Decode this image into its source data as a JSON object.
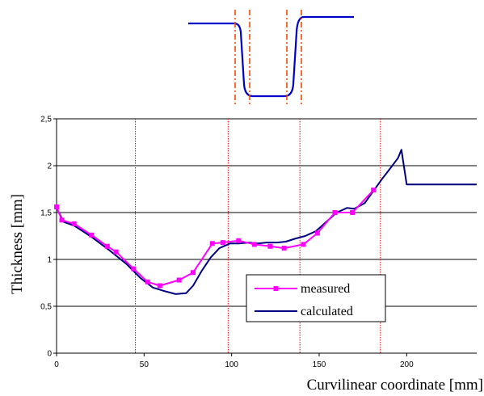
{
  "chart_data": {
    "type": "line",
    "title": "",
    "xlabel": "Curvilinear coordinate [mm]",
    "ylabel": "Thickness [mm]",
    "xlim": [
      0,
      240
    ],
    "ylim": [
      0,
      2.5
    ],
    "x_ticks": [
      "0",
      "50",
      "100",
      "150",
      "200"
    ],
    "y_ticks": [
      "0",
      "0,5",
      "1",
      "1,5",
      "2",
      "2,5"
    ],
    "grid": "horizontal",
    "legend_position": "bottom-center",
    "reference_lines_x": [
      45,
      98,
      139,
      185
    ],
    "series": [
      {
        "name": "measured",
        "color": "#ff00ff",
        "marker": "square",
        "x": [
          0,
          3,
          10,
          20,
          29,
          34,
          44,
          52,
          59,
          70,
          78,
          89,
          95,
          104,
          113,
          122,
          130,
          141,
          149,
          159,
          169,
          181
        ],
        "y": [
          1.56,
          1.42,
          1.38,
          1.26,
          1.14,
          1.08,
          0.9,
          0.76,
          0.72,
          0.78,
          0.86,
          1.17,
          1.18,
          1.2,
          1.16,
          1.14,
          1.12,
          1.16,
          1.28,
          1.5,
          1.5,
          1.74
        ]
      },
      {
        "name": "calculated",
        "color": "#000080",
        "marker": "none",
        "x": [
          0,
          4,
          10,
          20,
          30,
          40,
          48,
          55,
          62,
          68,
          74,
          78,
          83,
          88,
          93,
          99,
          104,
          110,
          115,
          120,
          126,
          131,
          136,
          142,
          148,
          154,
          160,
          166,
          170,
          176,
          181,
          186,
          191,
          195,
          197,
          200,
          210,
          220,
          230,
          240
        ],
        "y": [
          1.55,
          1.4,
          1.36,
          1.24,
          1.1,
          0.95,
          0.8,
          0.7,
          0.66,
          0.63,
          0.64,
          0.72,
          0.88,
          1.02,
          1.12,
          1.17,
          1.17,
          1.18,
          1.17,
          1.18,
          1.18,
          1.19,
          1.22,
          1.25,
          1.3,
          1.4,
          1.5,
          1.55,
          1.54,
          1.6,
          1.73,
          1.86,
          1.98,
          2.08,
          2.17,
          1.8,
          1.8,
          1.8,
          1.8,
          1.8
        ]
      }
    ]
  },
  "inset_diagram": {
    "profile_color": "#0000c8",
    "guide_color": "#ff4500"
  }
}
